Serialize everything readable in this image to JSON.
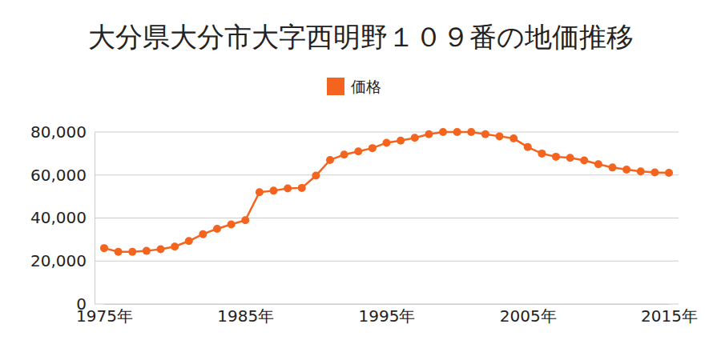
{
  "chart_data": {
    "type": "line",
    "title": "大分県大分市大字西明野１０９番の地価推移",
    "x": [
      1975,
      1976,
      1977,
      1978,
      1979,
      1980,
      1981,
      1982,
      1983,
      1984,
      1985,
      1986,
      1987,
      1988,
      1989,
      1990,
      1991,
      1992,
      1993,
      1994,
      1995,
      1996,
      1997,
      1998,
      1999,
      2000,
      2001,
      2002,
      2003,
      2004,
      2005,
      2006,
      2007,
      2008,
      2009,
      2010,
      2011,
      2012,
      2013,
      2014,
      2015
    ],
    "series": [
      {
        "name": "価格",
        "color": "#f5641e",
        "marker": "circle",
        "values": [
          26000,
          24300,
          24300,
          24700,
          25500,
          26700,
          29300,
          32500,
          35000,
          37000,
          39000,
          52000,
          52700,
          53800,
          54000,
          59700,
          67000,
          69500,
          71000,
          72500,
          75000,
          76000,
          77300,
          79000,
          80000,
          80000,
          80000,
          79000,
          78000,
          77000,
          73000,
          70000,
          68500,
          68000,
          66800,
          65000,
          63500,
          62500,
          61700,
          61200,
          61000
        ]
      }
    ],
    "xlim": [
      1975,
      2015
    ],
    "xticks": [
      {
        "value": 1975,
        "label": "1975年"
      },
      {
        "value": 1985,
        "label": "1985年"
      },
      {
        "value": 1995,
        "label": "1995年"
      },
      {
        "value": 2005,
        "label": "2005年"
      },
      {
        "value": 2015,
        "label": "2015年"
      }
    ],
    "ylim": [
      0,
      80000
    ],
    "yticks": [
      0,
      {
        "value": 20000,
        "label": "20,000"
      },
      {
        "value": 40000,
        "label": "40,000"
      },
      {
        "value": 60000,
        "label": "60,000"
      },
      {
        "value": 80000,
        "label": "80,000"
      }
    ],
    "grid": true,
    "legend": "top"
  }
}
